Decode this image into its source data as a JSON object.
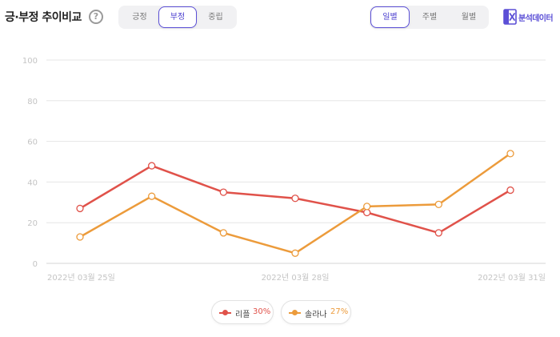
{
  "header": {
    "title": "긍·부정 추이비교",
    "help_symbol": "?",
    "sentiment_tabs": [
      {
        "label": "긍정",
        "active": false
      },
      {
        "label": "부정",
        "active": true
      },
      {
        "label": "중립",
        "active": false
      }
    ],
    "period_tabs": [
      {
        "label": "일별",
        "active": true
      },
      {
        "label": "주별",
        "active": false
      },
      {
        "label": "월별",
        "active": false
      }
    ],
    "export_label": "분석데이터",
    "export_icon": "excel-icon"
  },
  "colors": {
    "accent": "#5b4fd6",
    "series1": "#e0524a",
    "series2": "#ec9b3b",
    "grid": "#e6e6e6",
    "axis_text": "#c4c4c4"
  },
  "chart_data": {
    "type": "line",
    "title": "",
    "xlabel": "",
    "ylabel": "",
    "ylim": [
      0,
      100
    ],
    "yticks": [
      0,
      20,
      40,
      60,
      80,
      100
    ],
    "grid": true,
    "x": [
      "2022-03-25",
      "2022-03-26",
      "2022-03-27",
      "2022-03-28",
      "2022-03-29",
      "2022-03-30",
      "2022-03-31"
    ],
    "xtick_labels": [
      {
        "index": 0,
        "label": "2022년 03월 25일"
      },
      {
        "index": 3,
        "label": "2022년 03월 28일"
      },
      {
        "index": 6,
        "label": "2022년 03월 31일"
      }
    ],
    "series": [
      {
        "name": "리플",
        "share": "30%",
        "color": "#e0524a",
        "values": [
          27,
          48,
          35,
          32,
          25,
          15,
          36
        ]
      },
      {
        "name": "솔라나",
        "share": "27%",
        "color": "#ec9b3b",
        "values": [
          13,
          33,
          15,
          5,
          28,
          29,
          54
        ]
      }
    ],
    "legend_position": "bottom-center"
  }
}
